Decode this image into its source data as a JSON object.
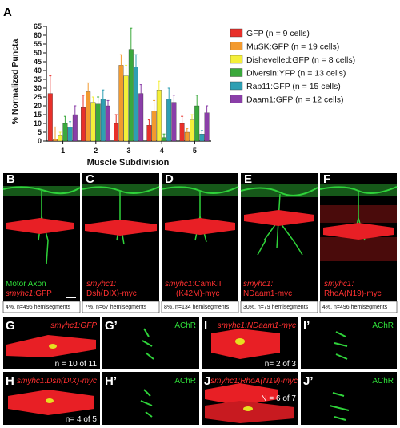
{
  "figure": {
    "panel_a": "A",
    "colors": {
      "red": "#e8302a",
      "orange": "#f39a2e",
      "yellow": "#f4ef3a",
      "green": "#3aa93c",
      "teal": "#2e9fb3",
      "purple": "#8a3ea8",
      "fiber": "#e81f25",
      "axon": "#2fd33a",
      "label_red": "#ff3030",
      "label_green": "#2fe03a"
    }
  },
  "chart_data": {
    "type": "bar",
    "categories": [
      "1",
      "2",
      "3",
      "4",
      "5"
    ],
    "xlabel": "Muscle Subdivision",
    "ylabel": "% Normalized Puncta",
    "ylim": [
      0,
      65
    ],
    "yticks": [
      0,
      5,
      10,
      15,
      20,
      25,
      30,
      35,
      40,
      45,
      50,
      55,
      60,
      65
    ],
    "grid": false,
    "legend_position": "right",
    "series": [
      {
        "name": "GFP (n = 9 cells)",
        "color_key": "red",
        "values": [
          27,
          19,
          10,
          9,
          10
        ],
        "errors": [
          10,
          7,
          5,
          3,
          4
        ]
      },
      {
        "name": "MuSK:GFP (n = 19 cells)",
        "color_key": "orange",
        "values": [
          1,
          28,
          43,
          17,
          5
        ],
        "errors": [
          7,
          5,
          6,
          6,
          2
        ]
      },
      {
        "name": "Dishevelled:GFP (n = 8 cells)",
        "color_key": "yellow",
        "values": [
          3,
          22,
          37,
          29,
          12
        ],
        "errors": [
          2,
          3,
          6,
          5,
          3
        ]
      },
      {
        "name": "Diversin:YFP (n = 13 cells)",
        "color_key": "green",
        "values": [
          10,
          21,
          52,
          2,
          20
        ],
        "errors": [
          4,
          4,
          12,
          2,
          6
        ]
      },
      {
        "name": "Rab11:GFP (n = 15 cells)",
        "color_key": "teal",
        "values": [
          8,
          24,
          42,
          24,
          4
        ],
        "errors": [
          3,
          5,
          7,
          6,
          2
        ]
      },
      {
        "name": "Daam1:GFP (n = 12 cells)",
        "color_key": "purple",
        "values": [
          15,
          20,
          27,
          22,
          16
        ],
        "errors": [
          5,
          3,
          5,
          4,
          4
        ]
      }
    ]
  },
  "micrographs_top": [
    {
      "letter": "B",
      "label_green": "Motor Axon",
      "label_red_1": "smyhc1",
      "label_red_2": ":GFP",
      "caption": "4%, n=496 hemisegments"
    },
    {
      "letter": "C",
      "label_red_1": "smyhc1:",
      "label_red_2": "Dsh(DIX)-myc",
      "caption": "7%, n=67 hemisegments"
    },
    {
      "letter": "D",
      "label_red_1": "smyhc1",
      "label_red_2": ":CamKII",
      "label_red_3": "(K42M)-myc",
      "caption": "8%, n=134 hemisegments"
    },
    {
      "letter": "E",
      "label_red_1": "smyhc1:",
      "label_red_2": "NDaam1-myc",
      "caption": "30%, n=79 hemisegments"
    },
    {
      "letter": "F",
      "label_red_1": "smyhc1:",
      "label_red_2": "RhoA(N19)-myc",
      "caption": "4%, n=496 hemisegments"
    }
  ],
  "micrographs_bottom": [
    {
      "letter": "G",
      "label": "smyhc1:GFP",
      "count": "n = 10 of 11"
    },
    {
      "letter": "G’",
      "label": "AChR"
    },
    {
      "letter": "I",
      "label": "smyhc1:NDaam1-myc",
      "count": "n= 2 of 3"
    },
    {
      "letter": "I’",
      "label": "AChR"
    },
    {
      "letter": "H",
      "label": "smyhc1:Dsh(DIX)-myc",
      "count": "n= 4 of 5"
    },
    {
      "letter": "H’",
      "label": "AChR"
    },
    {
      "letter": "J",
      "label": "smyhc1:RhoA(N19)-myc",
      "count": "N = 6 of 7"
    },
    {
      "letter": "J’",
      "label": "AChR"
    }
  ]
}
